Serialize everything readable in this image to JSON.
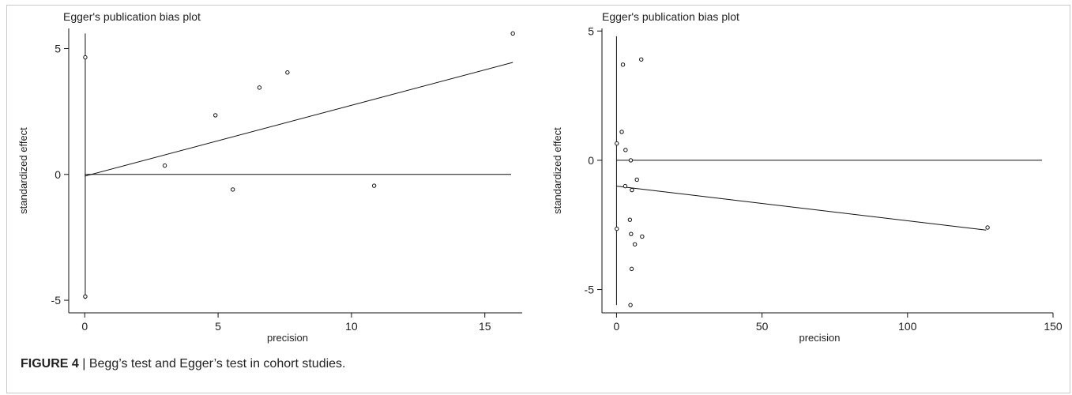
{
  "chart_data": [
    {
      "type": "scatter",
      "title": "Egger's publication bias plot",
      "xlabel": "precision",
      "ylabel": "standardized effect",
      "xlim": [
        -0.6,
        16.4
      ],
      "ylim": [
        -5.5,
        5.8
      ],
      "xticks": [
        0,
        5,
        10,
        15
      ],
      "yticks": [
        -5,
        0,
        5
      ],
      "points": [
        {
          "x": 0.02,
          "y": 4.65
        },
        {
          "x": 0.02,
          "y": -4.85
        },
        {
          "x": 3.0,
          "y": 0.35
        },
        {
          "x": 4.9,
          "y": 2.35
        },
        {
          "x": 5.55,
          "y": -0.6
        },
        {
          "x": 6.55,
          "y": 3.45
        },
        {
          "x": 7.6,
          "y": 4.05
        },
        {
          "x": 10.85,
          "y": -0.45
        },
        {
          "x": 16.05,
          "y": 5.6
        }
      ],
      "regression_line": {
        "x": [
          0.0,
          16.05
        ],
        "y": [
          -0.07,
          4.45
        ]
      },
      "reference_line_y": 0,
      "ci_bar": {
        "x": 0.02,
        "y_from": -4.95,
        "y_to": 5.6
      }
    },
    {
      "type": "scatter",
      "title": "Egger's publication bias plot",
      "xlabel": "precision",
      "ylabel": "standardized effect",
      "xlim": [
        -5,
        150
      ],
      "ylim": [
        -5.9,
        5.1
      ],
      "xticks": [
        0,
        50,
        100,
        150
      ],
      "xticklabels": [
        "0",
        "50",
        "100",
        "150"
      ],
      "yticks": [
        -5,
        0,
        5
      ],
      "points": [
        {
          "x": 2.2,
          "y": 3.7
        },
        {
          "x": 8.5,
          "y": 3.9
        },
        {
          "x": 1.8,
          "y": 1.1
        },
        {
          "x": 0.1,
          "y": 0.65
        },
        {
          "x": 3.1,
          "y": 0.4
        },
        {
          "x": 4.9,
          "y": 0.0
        },
        {
          "x": 7.0,
          "y": -0.75
        },
        {
          "x": 3.0,
          "y": -1.0
        },
        {
          "x": 5.3,
          "y": -1.15
        },
        {
          "x": 0.1,
          "y": -2.65
        },
        {
          "x": 4.6,
          "y": -2.3
        },
        {
          "x": 5.0,
          "y": -2.85
        },
        {
          "x": 8.8,
          "y": -2.95
        },
        {
          "x": 6.3,
          "y": -3.25
        },
        {
          "x": 5.2,
          "y": -4.2
        },
        {
          "x": 4.8,
          "y": -5.6
        },
        {
          "x": 127.5,
          "y": -2.6
        }
      ],
      "regression_line": {
        "x": [
          0.0,
          127.0
        ],
        "y": [
          -1.0,
          -2.7
        ]
      },
      "reference_line_y": 0,
      "ci_bar": {
        "x": 0.0,
        "y_from": -5.6,
        "y_to": 4.8
      }
    }
  ],
  "caption": {
    "label": "FIGURE 4",
    "text": " | Begg’s test and Egger’s test in cohort studies."
  }
}
